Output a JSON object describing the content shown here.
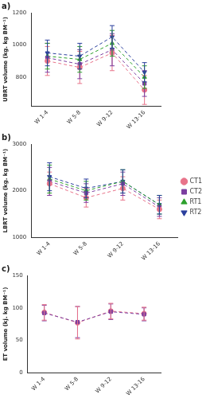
{
  "chart_data": [
    {
      "type": "line",
      "title": "a)",
      "y_label": "UBRT volume (kg. kg BM⁻¹)",
      "categories": [
        "W 1-4",
        "W 5-8",
        "W 9-12",
        "W 13-16"
      ],
      "ylim": [
        620,
        1200
      ],
      "yticks": [
        800,
        1000,
        1200
      ],
      "grid": false,
      "series": [
        {
          "name": "CT1",
          "color": "#e8738a",
          "marker": "circle",
          "line_style": "dashed",
          "values": [
            900,
            860,
            950,
            720
          ],
          "errors": [
            90,
            100,
            110,
            90
          ]
        },
        {
          "name": "CT2",
          "color": "#7b3fa0",
          "marker": "square",
          "line_style": "dashed",
          "values": [
            920,
            880,
            970,
            760
          ],
          "errors": [
            90,
            90,
            100,
            80
          ]
        },
        {
          "name": "RT1",
          "color": "#2ca02c",
          "marker": "triangle",
          "line_style": "dashed",
          "values": [
            930,
            910,
            1010,
            800
          ],
          "errors": [
            80,
            80,
            80,
            70
          ]
        },
        {
          "name": "RT2",
          "color": "#2a3f9d",
          "marker": "triangle-down",
          "line_style": "dashed",
          "values": [
            950,
            930,
            1050,
            830
          ],
          "errors": [
            80,
            80,
            70,
            60
          ]
        }
      ]
    },
    {
      "type": "line",
      "title": "b)",
      "y_label": "LBRT volume (kg. kg BM⁻¹)",
      "categories": [
        "W 1-4",
        "W 5-8",
        "W 9-12",
        "W 13-16"
      ],
      "ylim": [
        1000,
        3000
      ],
      "yticks": [
        1000,
        2000,
        3000
      ],
      "grid": false,
      "legend": "right",
      "series": [
        {
          "name": "CT1",
          "color": "#e8738a",
          "marker": "circle",
          "line_style": "dashed",
          "values": [
            2150,
            1850,
            2050,
            1600
          ],
          "errors": [
            250,
            200,
            250,
            200
          ]
        },
        {
          "name": "CT2",
          "color": "#7b3fa0",
          "marker": "square",
          "line_style": "dashed",
          "values": [
            2200,
            1950,
            2150,
            1650
          ],
          "errors": [
            300,
            200,
            250,
            200
          ]
        },
        {
          "name": "RT1",
          "color": "#2ca02c",
          "marker": "triangle",
          "line_style": "dashed",
          "values": [
            2250,
            2000,
            2200,
            1700
          ],
          "errors": [
            300,
            200,
            250,
            200
          ]
        },
        {
          "name": "RT2",
          "color": "#2a3f9d",
          "marker": "triangle-down",
          "line_style": "dashed",
          "values": [
            2300,
            2050,
            2200,
            1700
          ],
          "errors": [
            300,
            200,
            250,
            200
          ]
        }
      ]
    },
    {
      "type": "line",
      "title": "c)",
      "y_label": "ET volume (kj. kg BM⁻¹)",
      "categories": [
        "W 1-4",
        "W 5-8",
        "W 9-12",
        "W 13-16"
      ],
      "ylim": [
        0,
        150
      ],
      "yticks": [
        0,
        50,
        100,
        150
      ],
      "grid": false,
      "series": [
        {
          "name": "CT2",
          "color": "#7b3fa0",
          "marker": "square",
          "line_style": "dashed",
          "values": [
            92,
            78,
            94,
            90
          ],
          "errors": [
            12,
            24,
            12,
            10
          ]
        },
        {
          "name": "CT1",
          "color": "#e8738a",
          "marker": "circle",
          "line_style": "dashed",
          "values": [
            93,
            77,
            95,
            91
          ],
          "errors": [
            12,
            25,
            12,
            10
          ]
        }
      ]
    }
  ]
}
